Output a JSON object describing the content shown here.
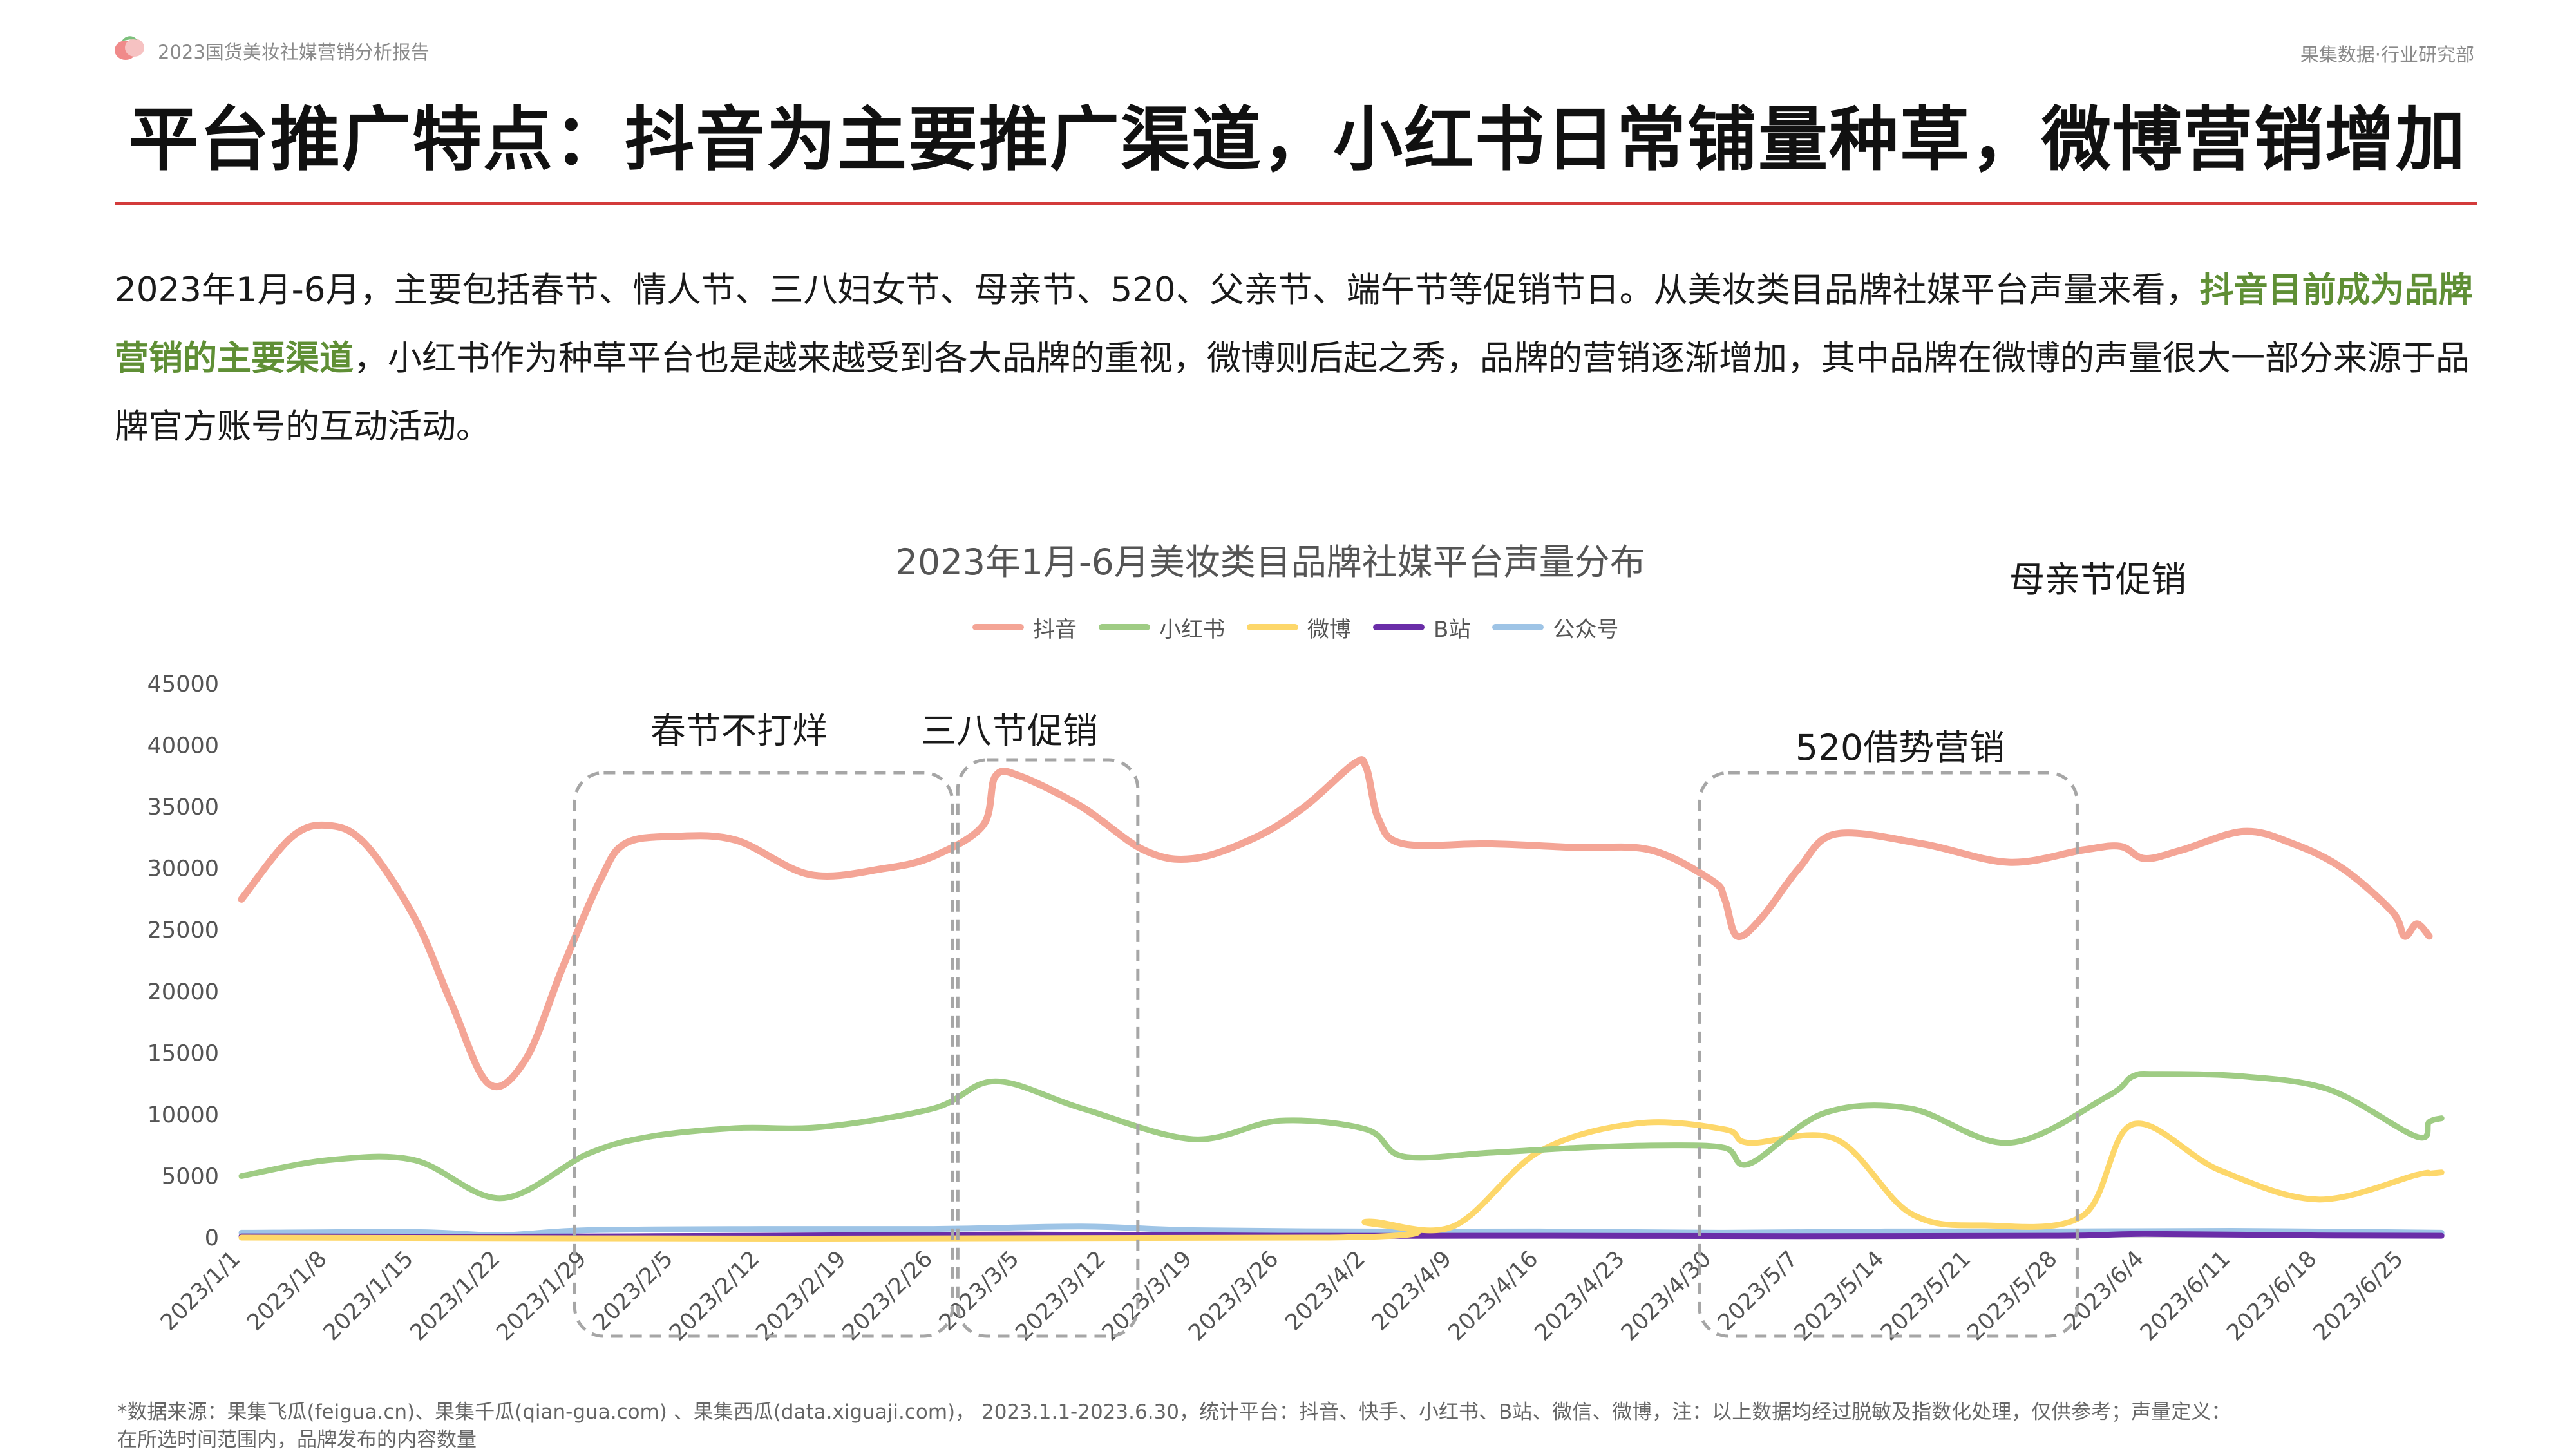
{
  "header": {
    "report_name": "2023国货美妆社媒营销分析报告",
    "org_name": "果集数据·行业研究部",
    "title": "平台推广特点：抖音为主要推广渠道，小红书日常铺量种草，微博营销增加"
  },
  "intro": {
    "part1": "2023年1月-6月，主要包括春节、情人节、三八妇女节、母亲节、520、父亲节、端午节等促销节日。从美妆类目品牌社媒平台声量来看，",
    "highlight": "抖音目前成为品牌营销的主要渠道",
    "part2": "，小红书作为种草平台也是越来越受到各大品牌的重视，微博则后起之秀，品牌的营销逐渐增加，其中品牌在微博的声量很大一部分来源于品牌官方账号的互动活动。"
  },
  "colors": {
    "highlight": "#5f8f35",
    "rule": "#d33b3b"
  },
  "annotations": {
    "spring": "春节不打烊",
    "womens_day": "三八节促销",
    "mothers_day": "母亲节促销",
    "may20": "520借势营销"
  },
  "footnote": {
    "line1": "*数据来源：果集飞瓜(feigua.cn)、果集千瓜(qian-gua.com) 、果集西瓜(data.xiguaji.com)， 2023.1.1-2023.6.30，统计平台：抖音、快手、小红书、B站、微信、微博，注：以上数据均经过脱敏及指数化处理，仅供参考；声量定义：",
    "line2": "在所选时间范围内，品牌发布的内容数量"
  },
  "chart_data": {
    "type": "line",
    "title": "2023年1月-6月美妆类目品牌社媒平台声量分布",
    "ylim": [
      0,
      45000
    ],
    "yticks": [
      0,
      5000,
      10000,
      15000,
      20000,
      25000,
      30000,
      35000,
      40000,
      45000
    ],
    "xticks": [
      "2023/1/1",
      "2023/1/8",
      "2023/1/15",
      "2023/1/22",
      "2023/1/29",
      "2023/2/5",
      "2023/2/12",
      "2023/2/19",
      "2023/2/26",
      "2023/3/5",
      "2023/3/12",
      "2023/3/19",
      "2023/3/26",
      "2023/4/2",
      "2023/4/9",
      "2023/4/16",
      "2023/4/23",
      "2023/4/30",
      "2023/5/7",
      "2023/5/14",
      "2023/5/21",
      "2023/5/28",
      "2023/6/4",
      "2023/6/11",
      "2023/6/18",
      "2023/6/25"
    ],
    "x_range": [
      "2023/1/1",
      "2023/6/27"
    ],
    "grid": false,
    "legend_position": "top",
    "series": [
      {
        "name": "抖音",
        "color": "#f4a596",
        "points": [
          [
            "2023/1/1",
            27500
          ],
          [
            "2023/1/5",
            32500
          ],
          [
            "2023/1/8",
            33500
          ],
          [
            "2023/1/11",
            32000
          ],
          [
            "2023/1/15",
            26000
          ],
          [
            "2023/1/18",
            19000
          ],
          [
            "2023/1/21",
            12500
          ],
          [
            "2023/1/24",
            14500
          ],
          [
            "2023/1/27",
            22000
          ],
          [
            "2023/1/30",
            29000
          ],
          [
            "2023/2/1",
            32000
          ],
          [
            "2023/2/5",
            32600
          ],
          [
            "2023/2/10",
            32300
          ],
          [
            "2023/2/16",
            29500
          ],
          [
            "2023/2/22",
            30000
          ],
          [
            "2023/2/26",
            31000
          ],
          [
            "2023/3/2",
            33500
          ],
          [
            "2023/3/3",
            37500
          ],
          [
            "2023/3/5",
            37500
          ],
          [
            "2023/3/10",
            35000
          ],
          [
            "2023/3/15",
            31500
          ],
          [
            "2023/3/19",
            30800
          ],
          [
            "2023/3/24",
            32500
          ],
          [
            "2023/3/28",
            35000
          ],
          [
            "2023/4/1",
            38500
          ],
          [
            "2023/4/2",
            38200
          ],
          [
            "2023/4/3",
            34000
          ],
          [
            "2023/4/5",
            32000
          ],
          [
            "2023/4/12",
            32000
          ],
          [
            "2023/4/19",
            31700
          ],
          [
            "2023/4/25",
            31500
          ],
          [
            "2023/4/30",
            29000
          ],
          [
            "2023/5/1",
            27500
          ],
          [
            "2023/5/2",
            24500
          ],
          [
            "2023/5/4",
            26000
          ],
          [
            "2023/5/7",
            30000
          ],
          [
            "2023/5/10",
            32800
          ],
          [
            "2023/5/17",
            32000
          ],
          [
            "2023/5/24",
            30500
          ],
          [
            "2023/5/30",
            31500
          ],
          [
            "2023/6/2",
            31800
          ],
          [
            "2023/6/4",
            30800
          ],
          [
            "2023/6/7",
            31500
          ],
          [
            "2023/6/12",
            33000
          ],
          [
            "2023/6/16",
            32000
          ],
          [
            "2023/6/20",
            30000
          ],
          [
            "2023/6/24",
            26500
          ],
          [
            "2023/6/25",
            24500
          ],
          [
            "2023/6/26",
            25500
          ],
          [
            "2023/6/27",
            24500
          ]
        ]
      },
      {
        "name": "小红书",
        "color": "#9fcc84",
        "points": [
          [
            "2023/1/1",
            5000
          ],
          [
            "2023/1/8",
            6300
          ],
          [
            "2023/1/15",
            6300
          ],
          [
            "2023/1/22",
            3200
          ],
          [
            "2023/1/29",
            6800
          ],
          [
            "2023/2/3",
            8200
          ],
          [
            "2023/2/10",
            8900
          ],
          [
            "2023/2/17",
            9000
          ],
          [
            "2023/2/26",
            10500
          ],
          [
            "2023/3/3",
            12700
          ],
          [
            "2023/3/10",
            10500
          ],
          [
            "2023/3/19",
            8000
          ],
          [
            "2023/3/26",
            9500
          ],
          [
            "2023/4/2",
            8800
          ],
          [
            "2023/4/5",
            6600
          ],
          [
            "2023/4/12",
            6900
          ],
          [
            "2023/4/19",
            7300
          ],
          [
            "2023/4/26",
            7500
          ],
          [
            "2023/5/1",
            7300
          ],
          [
            "2023/5/3",
            6000
          ],
          [
            "2023/5/9",
            10100
          ],
          [
            "2023/5/16",
            10500
          ],
          [
            "2023/5/24",
            7700
          ],
          [
            "2023/6/1",
            11500
          ],
          [
            "2023/6/3",
            13100
          ],
          [
            "2023/6/5",
            13300
          ],
          [
            "2023/6/12",
            13100
          ],
          [
            "2023/6/19",
            12000
          ],
          [
            "2023/6/26",
            8200
          ],
          [
            "2023/6/27",
            9400
          ],
          [
            "2023/6/28",
            9700
          ]
        ]
      },
      {
        "name": "微博",
        "color": "#fdd76a",
        "points": [
          [
            "2023/1/1",
            0
          ],
          [
            "2023/3/30",
            0
          ],
          [
            "2023/4/2",
            1300
          ],
          [
            "2023/4/9",
            900
          ],
          [
            "2023/4/16",
            7000
          ],
          [
            "2023/4/24",
            9300
          ],
          [
            "2023/5/1",
            8800
          ],
          [
            "2023/5/3",
            7700
          ],
          [
            "2023/5/10",
            8000
          ],
          [
            "2023/5/16",
            2000
          ],
          [
            "2023/5/22",
            1000
          ],
          [
            "2023/5/30",
            1800
          ],
          [
            "2023/6/3",
            9200
          ],
          [
            "2023/6/10",
            5500
          ],
          [
            "2023/6/18",
            3100
          ],
          [
            "2023/6/26",
            5100
          ],
          [
            "2023/6/27",
            5200
          ],
          [
            "2023/6/28",
            5300
          ]
        ]
      },
      {
        "name": "B站",
        "color": "#6a2da8",
        "points": [
          [
            "2023/1/1",
            100
          ],
          [
            "2023/1/22",
            80
          ],
          [
            "2023/2/12",
            150
          ],
          [
            "2023/3/5",
            250
          ],
          [
            "2023/3/26",
            150
          ],
          [
            "2023/4/16",
            150
          ],
          [
            "2023/5/7",
            120
          ],
          [
            "2023/5/28",
            150
          ],
          [
            "2023/6/4",
            300
          ],
          [
            "2023/6/18",
            180
          ],
          [
            "2023/6/28",
            150
          ]
        ]
      },
      {
        "name": "公众号",
        "color": "#9ec4e6",
        "points": [
          [
            "2023/1/1",
            400
          ],
          [
            "2023/1/15",
            450
          ],
          [
            "2023/1/22",
            200
          ],
          [
            "2023/1/29",
            600
          ],
          [
            "2023/2/12",
            700
          ],
          [
            "2023/2/26",
            700
          ],
          [
            "2023/3/10",
            900
          ],
          [
            "2023/3/19",
            600
          ],
          [
            "2023/4/2",
            500
          ],
          [
            "2023/4/16",
            500
          ],
          [
            "2023/5/1",
            400
          ],
          [
            "2023/5/14",
            500
          ],
          [
            "2023/5/28",
            500
          ],
          [
            "2023/6/11",
            550
          ],
          [
            "2023/6/28",
            400
          ]
        ]
      }
    ]
  }
}
